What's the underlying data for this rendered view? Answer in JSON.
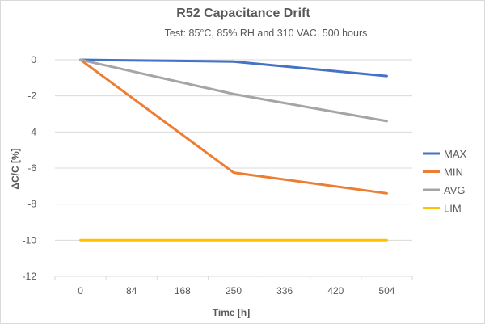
{
  "chart_data": {
    "type": "line",
    "title": "R52 Capacitance Drift",
    "subtitle": "Test: 85°C, 85% RH and 310 VAC, 500 hours",
    "xlabel": "Time [h]",
    "ylabel": "ΔC/C [%]",
    "categories": [
      "0",
      "84",
      "168",
      "250",
      "336",
      "420",
      "504"
    ],
    "y_ticks": [
      "0",
      "-2",
      "-4",
      "-6",
      "-8",
      "-10",
      "-12"
    ],
    "ylim": [
      -12,
      0
    ],
    "grid": "horizontal",
    "legend_position": "right",
    "series": [
      {
        "name": "MAX",
        "color": "#4472C4",
        "x": [
          0,
          250,
          504
        ],
        "values": [
          0,
          -0.1,
          -0.9
        ]
      },
      {
        "name": "MIN",
        "color": "#ED7D31",
        "x": [
          0,
          250,
          504
        ],
        "values": [
          0,
          -6.25,
          -7.4
        ]
      },
      {
        "name": "AVG",
        "color": "#A5A5A5",
        "x": [
          0,
          250,
          504
        ],
        "values": [
          0,
          -1.9,
          -3.4
        ]
      },
      {
        "name": "LIM",
        "color": "#FFC000",
        "x": [
          0,
          504
        ],
        "values": [
          -10,
          -10
        ]
      }
    ]
  }
}
